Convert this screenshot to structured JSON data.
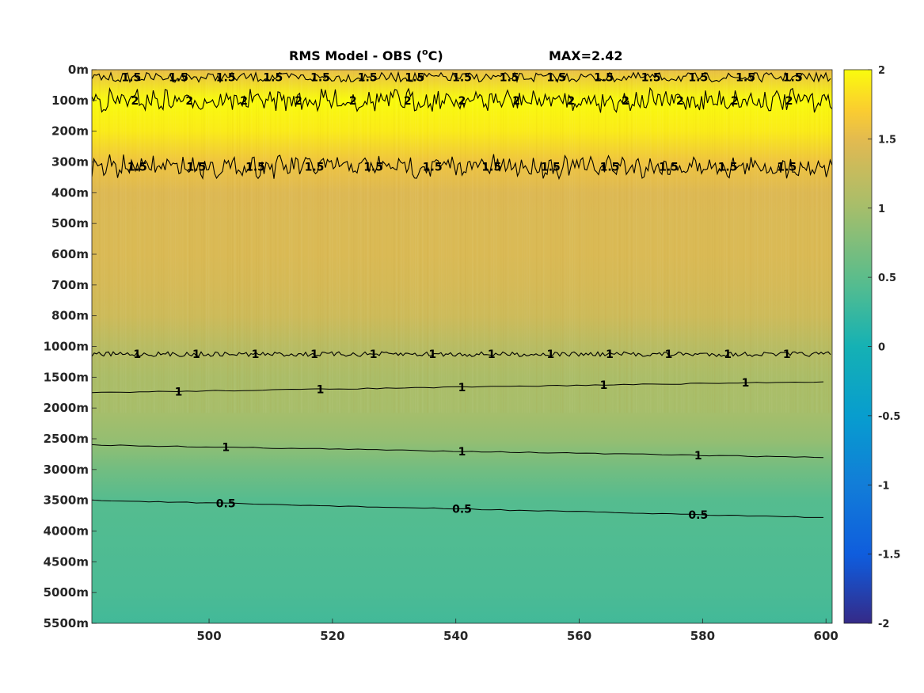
{
  "chart_data": {
    "type": "heatmap",
    "title": "RMS Model - OBS (",
    "title_unit_sup": "o",
    "title_unit": "C)",
    "max_label": "MAX=2.42",
    "x_ticks": [
      500,
      520,
      540,
      560,
      580,
      600
    ],
    "xlim": [
      481,
      601
    ],
    "y_ticks": [
      "0m",
      "100m",
      "200m",
      "300m",
      "400m",
      "500m",
      "600m",
      "700m",
      "800m",
      "1000m",
      "1500m",
      "2000m",
      "2500m",
      "3000m",
      "3500m",
      "4000m",
      "4500m",
      "5000m",
      "5500m"
    ],
    "colorbar": {
      "ticks": [
        2,
        1.5,
        1,
        0.5,
        0,
        -0.5,
        -1,
        -1.5,
        -2
      ],
      "range": [
        -2,
        2
      ],
      "colormap": "parula"
    },
    "depth_profile": {
      "levels": [
        "0m",
        "100m",
        "200m",
        "300m",
        "400m",
        "500m",
        "600m",
        "700m",
        "800m",
        "1000m",
        "1500m",
        "2000m",
        "2500m",
        "3000m",
        "3500m",
        "4000m",
        "4500m",
        "5000m",
        "5500m"
      ],
      "values": [
        1.55,
        2.05,
        1.9,
        1.6,
        1.45,
        1.42,
        1.42,
        1.38,
        1.32,
        1.15,
        1.05,
        1.02,
        0.9,
        0.65,
        0.45,
        0.42,
        0.4,
        0.38,
        0.32
      ]
    },
    "contours": [
      {
        "level": 1.5,
        "y_index": 0.25,
        "noise": "high",
        "labels": [
          "1.5",
          "1.5",
          "1.5",
          "1.5",
          "1.5",
          "1.5",
          "1.5",
          "1.5",
          "1.5",
          "1.5",
          "1.5",
          "1.5",
          "1.5",
          "1.5",
          "1.5"
        ]
      },
      {
        "level": 2,
        "y_index": 1.0,
        "noise": "very_high",
        "labels": [
          "2",
          "2",
          "2",
          "2",
          "2",
          "2",
          "2",
          "2",
          "2",
          "2",
          "2",
          "2",
          "2"
        ]
      },
      {
        "level": 1.5,
        "y_index": 3.15,
        "noise": "very_high",
        "labels": [
          "1.5",
          "1.5",
          "1.5",
          "1.5",
          "1.5",
          "1.5",
          "1.5",
          "1.5",
          "1.5",
          "1.5",
          "1.5",
          "1.5"
        ]
      },
      {
        "level": 1,
        "y_index": 9.25,
        "noise": "medium",
        "labels": [
          "1",
          "1",
          "1",
          "1",
          "1",
          "1",
          "1",
          "1",
          "1",
          "1",
          "1",
          "1"
        ]
      },
      {
        "level": 1,
        "y_index": 10.5,
        "noise": "low",
        "labels": [
          "1",
          "1",
          "1",
          "1",
          "1"
        ]
      },
      {
        "level": 1,
        "y_index": 12.2,
        "noise": "low",
        "labels": [
          "1",
          "1",
          "1"
        ]
      },
      {
        "level": 0.5,
        "y_index": 14.0,
        "noise": "low",
        "labels": [
          "0.5",
          "0.5",
          "0.5"
        ]
      }
    ]
  }
}
